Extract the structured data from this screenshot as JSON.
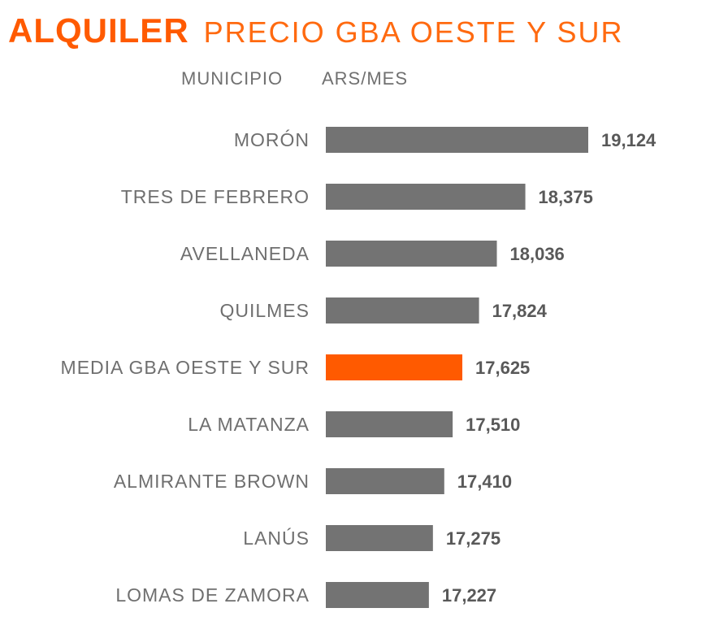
{
  "title": "ALQUILER",
  "subtitle": "PRECIO GBA OESTE Y SUR",
  "headers": {
    "category": "MUNICIPIO",
    "value": "ARS/MES"
  },
  "colors": {
    "title": "#ff5a00",
    "bar": "#737373",
    "highlight": "#ff5a00",
    "label": "#6f6f6f",
    "value": "#595959"
  },
  "chart_data": {
    "type": "bar",
    "orientation": "horizontal",
    "title": "ALQUILER",
    "subtitle": "PRECIO GBA OESTE Y SUR",
    "xlabel": "ARS/MES",
    "ylabel": "MUNICIPIO",
    "categories": [
      "MORÓN",
      "TRES DE FEBRERO",
      "AVELLANEDA",
      "QUILMES",
      "MEDIA GBA OESTE Y SUR",
      "LA MATANZA",
      "ALMIRANTE BROWN",
      "LANÚS",
      "LOMAS DE ZAMORA"
    ],
    "values": [
      19124,
      18375,
      18036,
      17824,
      17625,
      17510,
      17410,
      17275,
      17227
    ],
    "value_labels": [
      "19,124",
      "18,375",
      "18,036",
      "17,824",
      "17,625",
      "17,510",
      "17,410",
      "17,275",
      "17,227"
    ],
    "highlight_category": "MEDIA GBA OESTE Y SUR",
    "xlim": [
      16000,
      19124
    ],
    "grid": false,
    "legend": "none"
  }
}
